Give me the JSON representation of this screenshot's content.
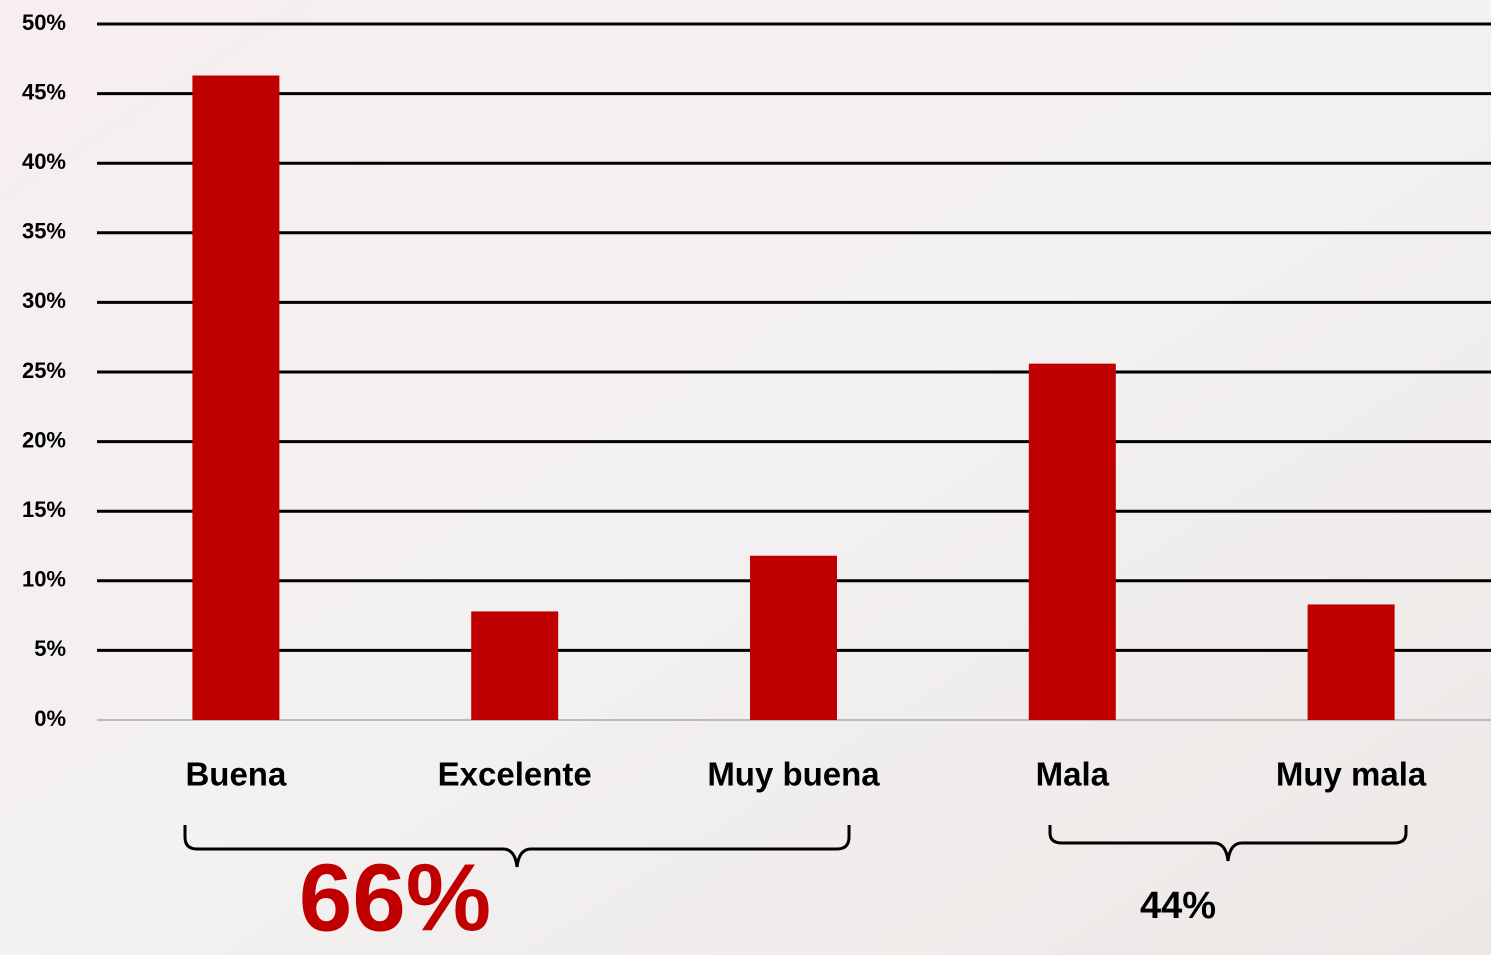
{
  "chart_data": {
    "type": "bar",
    "categories": [
      "Buena",
      "Excelente",
      "Muy buena",
      "Mala",
      "Muy mala"
    ],
    "values": [
      46.3,
      7.8,
      11.8,
      25.6,
      8.3
    ],
    "color": "#c00000",
    "ylim": [
      0,
      50
    ],
    "yticks": [
      {
        "value": 0,
        "label": "0%"
      },
      {
        "value": 5,
        "label": "5%"
      },
      {
        "value": 10,
        "label": "10%"
      },
      {
        "value": 15,
        "label": "15%"
      },
      {
        "value": 20,
        "label": "20%"
      },
      {
        "value": 25,
        "label": "25%"
      },
      {
        "value": 30,
        "label": "30%"
      },
      {
        "value": 35,
        "label": "35%"
      },
      {
        "value": 40,
        "label": "40%"
      },
      {
        "value": 45,
        "label": "45%"
      },
      {
        "value": 50,
        "label": "50%"
      }
    ],
    "grid": true,
    "annotations": [
      "66%",
      "44%"
    ]
  }
}
